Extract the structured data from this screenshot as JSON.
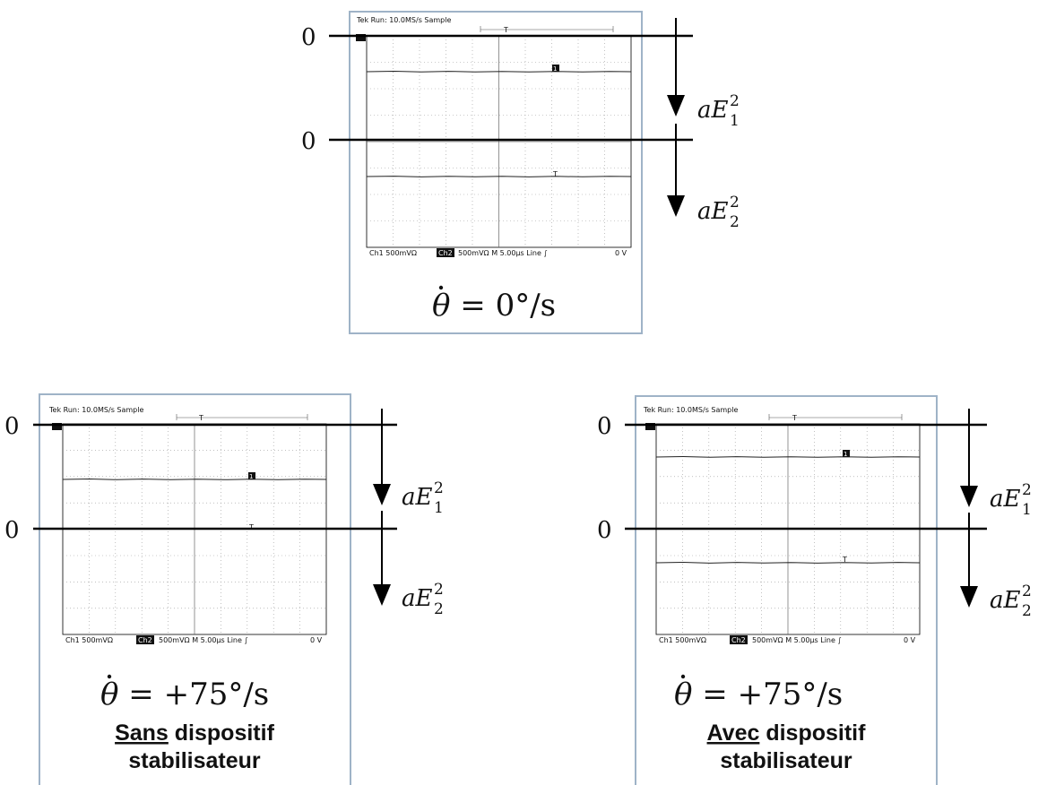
{
  "panels": [
    {
      "id": "top",
      "scope_header": "Tek Run: 10.0MS/s   Sample",
      "trigger_label": "T",
      "ch_marker_1": "1",
      "ch_marker_2": "T",
      "footer_ch1": "Ch1   500mVΩ",
      "footer_ch2_badge": "Ch2",
      "footer_rest": "500mVΩ   M 5.00µs   Line ∫",
      "footer_level": "0 V",
      "zero_label_1": "0",
      "zero_label_2": "0",
      "arrow_label_1": "aE",
      "arrow_label_1_sub": "1",
      "arrow_label_1_sup": "2",
      "arrow_label_2": "aE",
      "arrow_label_2_sub": "2",
      "arrow_label_2_sup": "2",
      "formula_theta": "θ",
      "formula_rest": " = 0°/s",
      "caption_underlined": "",
      "caption_rest": "",
      "caption_line2": ""
    },
    {
      "id": "left",
      "scope_header": "Tek Run: 10.0MS/s   Sample",
      "trigger_label": "T",
      "ch_marker_1": "1",
      "ch_marker_2": "T",
      "footer_ch1": "Ch1   500mVΩ",
      "footer_ch2_badge": "Ch2",
      "footer_rest": "500mVΩ   M 5.00µs   Line ∫",
      "footer_level": "0 V",
      "zero_label_1": "0",
      "zero_label_2": "0",
      "arrow_label_1": "aE",
      "arrow_label_1_sub": "1",
      "arrow_label_1_sup": "2",
      "arrow_label_2": "aE",
      "arrow_label_2_sub": "2",
      "arrow_label_2_sup": "2",
      "formula_theta": "θ",
      "formula_rest": " = +75°/s",
      "caption_underlined": "Sans",
      "caption_rest": " dispositif",
      "caption_line2": "stabilisateur"
    },
    {
      "id": "right",
      "scope_header": "Tek Run: 10.0MS/s   Sample",
      "trigger_label": "T",
      "ch_marker_1": "1",
      "ch_marker_2": "T",
      "footer_ch1": "Ch1   500mVΩ",
      "footer_ch2_badge": "Ch2",
      "footer_rest": "500mVΩ   M 5.00µs   Line ∫",
      "footer_level": "0 V",
      "zero_label_1": "0",
      "zero_label_2": "0",
      "arrow_label_1": "aE",
      "arrow_label_1_sub": "1",
      "arrow_label_1_sup": "2",
      "arrow_label_2": "aE",
      "arrow_label_2_sub": "2",
      "arrow_label_2_sup": "2",
      "formula_theta": "θ",
      "formula_rest": " = +75°/s",
      "caption_underlined": "Avec",
      "caption_rest": " dispositif",
      "caption_line2": "stabilisateur"
    }
  ],
  "colors": {
    "frame": "#9fb3c7",
    "trace": "#222222",
    "ref_line": "#000000"
  }
}
